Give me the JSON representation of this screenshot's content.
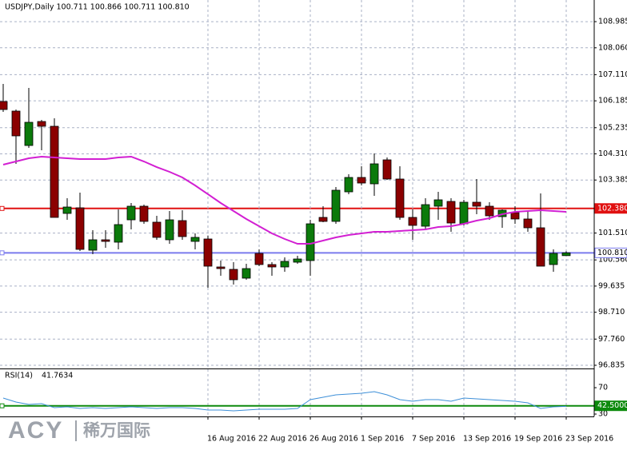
{
  "chart_data": [
    {
      "type": "candlestick",
      "title": "USDJPY,Daily  100.711 100.866 100.711 100.810",
      "categories": [
        null,
        null,
        null,
        null,
        null,
        null,
        null,
        null,
        null,
        null,
        null,
        null,
        null,
        null,
        null,
        null,
        "16 Aug 2016",
        null,
        null,
        null,
        "22 Aug 2016",
        null,
        null,
        null,
        "26 Aug 2016",
        null,
        null,
        null,
        "1 Sep 2016",
        null,
        null,
        null,
        "7 Sep 2016",
        null,
        null,
        null,
        "13 Sep 2016",
        null,
        null,
        null,
        "19 Sep 2016",
        null,
        null,
        null,
        "23 Sep 2016"
      ],
      "open": [
        106.161,
        105.822,
        104.606,
        105.454,
        105.285,
        102.204,
        102.402,
        100.904,
        101.272,
        101.187,
        101.978,
        102.459,
        101.894,
        101.272,
        101.95,
        101.215,
        101.3,
        100.311,
        100.226,
        99.915,
        100.791,
        100.396,
        100.311,
        100.48,
        100.537,
        102.063,
        101.922,
        102.967,
        103.476,
        103.25,
        104.098,
        103.42,
        102.063,
        101.752,
        102.459,
        102.628,
        101.837,
        102.6,
        102.459,
        102.091,
        102.233,
        102.007,
        101.696,
        100.396,
        100.711
      ],
      "high": [
        106.783,
        105.878,
        106.641,
        105.511,
        105.567,
        102.741,
        102.939,
        101.611,
        101.611,
        102.346,
        102.572,
        102.515,
        102.12,
        102.289,
        102.317,
        101.498,
        101.413,
        100.537,
        100.48,
        100.424,
        100.933,
        100.48,
        100.65,
        100.706,
        101.978,
        102.459,
        103.137,
        103.589,
        103.872,
        104.324,
        104.183,
        103.872,
        102.346,
        102.741,
        102.967,
        102.741,
        102.685,
        103.42,
        102.6,
        102.346,
        102.459,
        102.261,
        102.911,
        100.933,
        100.866
      ],
      "low": [
        105.793,
        103.957,
        104.522,
        104.437,
        102.063,
        101.978,
        100.876,
        100.763,
        100.989,
        100.933,
        101.639,
        101.837,
        101.272,
        101.13,
        101.272,
        100.933,
        99.576,
        100.0,
        99.689,
        99.859,
        100.339,
        100.0,
        100.141,
        100.424,
        100.0,
        101.894,
        101.837,
        102.883,
        103.193,
        102.826,
        103.391,
        101.978,
        101.272,
        101.611,
        101.978,
        101.554,
        101.781,
        102.176,
        101.978,
        101.696,
        101.837,
        101.554,
        100.339,
        100.141,
        100.711
      ],
      "close": [
        105.878,
        104.946,
        105.426,
        105.285,
        102.063,
        102.43,
        100.933,
        101.272,
        101.215,
        101.809,
        102.459,
        101.922,
        101.357,
        101.978,
        101.385,
        101.357,
        100.339,
        100.254,
        99.859,
        100.254,
        100.396,
        100.311,
        100.509,
        100.593,
        101.837,
        101.922,
        103.024,
        103.476,
        103.278,
        103.957,
        103.42,
        102.063,
        101.781,
        102.515,
        102.685,
        101.865,
        102.6,
        102.459,
        102.12,
        102.317,
        102.007,
        101.696,
        100.339,
        100.791,
        100.81
      ],
      "up_color": "#0b7a0b",
      "down_color": "#8b0000",
      "overlay": {
        "color": "#d21fd2",
        "values": [
          103.928,
          104.041,
          104.154,
          104.211,
          104.183,
          104.154,
          104.126,
          104.126,
          104.126,
          104.183,
          104.211,
          104.041,
          103.843,
          103.674,
          103.476,
          103.193,
          102.883,
          102.572,
          102.289,
          102.007,
          101.752,
          101.498,
          101.3,
          101.13,
          101.13,
          101.243,
          101.357,
          101.441,
          101.498,
          101.554,
          101.554,
          101.583,
          101.611,
          101.639,
          101.724,
          101.752,
          101.837,
          101.95,
          102.035,
          102.176,
          102.261,
          102.289,
          102.317,
          102.289,
          102.261
        ]
      },
      "ylim": [
        96.75,
        109.75
      ],
      "yticks": [
        108.985,
        {
          "value": 108.06,
          "label": "108.060"
        },
        {
          "value": 107.11,
          "label": "107.110"
        },
        106.185,
        105.235,
        {
          "value": 104.31,
          "label": "104.310"
        },
        103.385,
        {
          "value": 101.51,
          "label": "101.510"
        },
        {
          "value": 100.56,
          "label": "100.560"
        },
        99.635,
        {
          "value": 98.71,
          "label": "98.710"
        },
        {
          "value": 97.76,
          "label": "97.760"
        },
        96.835
      ],
      "hlines": [
        {
          "value": 102.38,
          "label": "102.380",
          "color": "#e01010"
        },
        {
          "value": 100.81,
          "label": "100.810",
          "color": "#7a7aee"
        }
      ],
      "grid": true
    },
    {
      "type": "line",
      "name": "RSI(14)",
      "color": "#3d8fd8",
      "values": [
        54.3,
        48.2,
        44.6,
        45.8,
        39.7,
        40.9,
        38.5,
        39.7,
        38.5,
        39.7,
        40.9,
        39.7,
        38.5,
        39.7,
        39.7,
        38.5,
        36.1,
        36.1,
        34.9,
        36.1,
        37.3,
        37.3,
        37.3,
        38.5,
        51.9,
        55.5,
        59.1,
        60.3,
        61.5,
        64.0,
        59.1,
        51.9,
        49.4,
        51.9,
        51.9,
        49.4,
        54.3,
        53.1,
        51.9,
        50.6,
        49.4,
        47.0,
        38.5,
        40.9,
        41.7634
      ],
      "ylim": [
        26.4,
        96.7
      ],
      "yticks": [
        70,
        30
      ],
      "hlines": [
        {
          "value": 42.5,
          "label": "42.5000",
          "color": "#0d8a0d"
        }
      ]
    }
  ],
  "watermark": {
    "brand": "ACY",
    "chinese": "稀万国际"
  }
}
